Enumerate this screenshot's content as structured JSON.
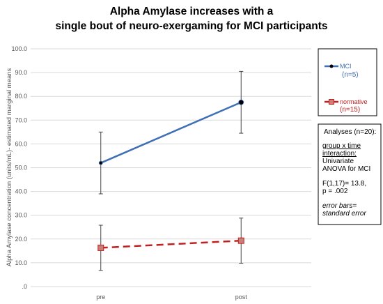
{
  "chart_data": {
    "type": "line",
    "title_lines": [
      "Alpha Amylase increases with a",
      "single bout of neuro-exergaming for MCI participants"
    ],
    "ylabel": "Alpha Amylase concentration (units/mL)- estimated marginal means",
    "xlabel": "",
    "categories": [
      "pre",
      "post"
    ],
    "ylim": [
      0,
      100
    ],
    "yticks": [
      {
        "value": 0,
        "label": ".0"
      },
      {
        "value": 10,
        "label": "10.0"
      },
      {
        "value": 20,
        "label": "20.0"
      },
      {
        "value": 30,
        "label": "30.0"
      },
      {
        "value": 40,
        "label": "40.0"
      },
      {
        "value": 50,
        "label": "50.0"
      },
      {
        "value": 60,
        "label": "60.0"
      },
      {
        "value": 70,
        "label": "70.0"
      },
      {
        "value": 80,
        "label": "80.0"
      },
      {
        "value": 90,
        "label": "90.0"
      },
      {
        "value": 100,
        "label": "100.0"
      }
    ],
    "grid": true,
    "series": [
      {
        "name": "MCI",
        "n_label": "(n=5)",
        "values": [
          52.0,
          77.5
        ],
        "err_low": [
          39.0,
          64.5
        ],
        "err_high": [
          65.0,
          90.5
        ],
        "color": "#3f6fb5",
        "marker": "circle",
        "line_style": "solid"
      },
      {
        "name": "normative",
        "n_label": "(n=15)",
        "values": [
          16.3,
          19.3
        ],
        "err_low": [
          6.8,
          9.8
        ],
        "err_high": [
          25.8,
          28.8
        ],
        "color": "#c0201e",
        "marker": "square",
        "line_style": "dashed"
      }
    ],
    "legend_position": "right",
    "annotation": {
      "heading": "Analyses (n=20):",
      "underlined_lines": [
        "group x time",
        "interaction:"
      ],
      "lines": [
        "Univariate",
        "ANOVA for MCI"
      ],
      "stat_lines": [
        "F(1,17)= 13.8,",
        "p = .002"
      ],
      "italic_lines": [
        "error bars=",
        "standard error"
      ]
    }
  },
  "colors": {
    "marker_fill_normative": "#c8807a",
    "marker_fill_mci": "#000000",
    "grid": "#d9d9d9"
  }
}
